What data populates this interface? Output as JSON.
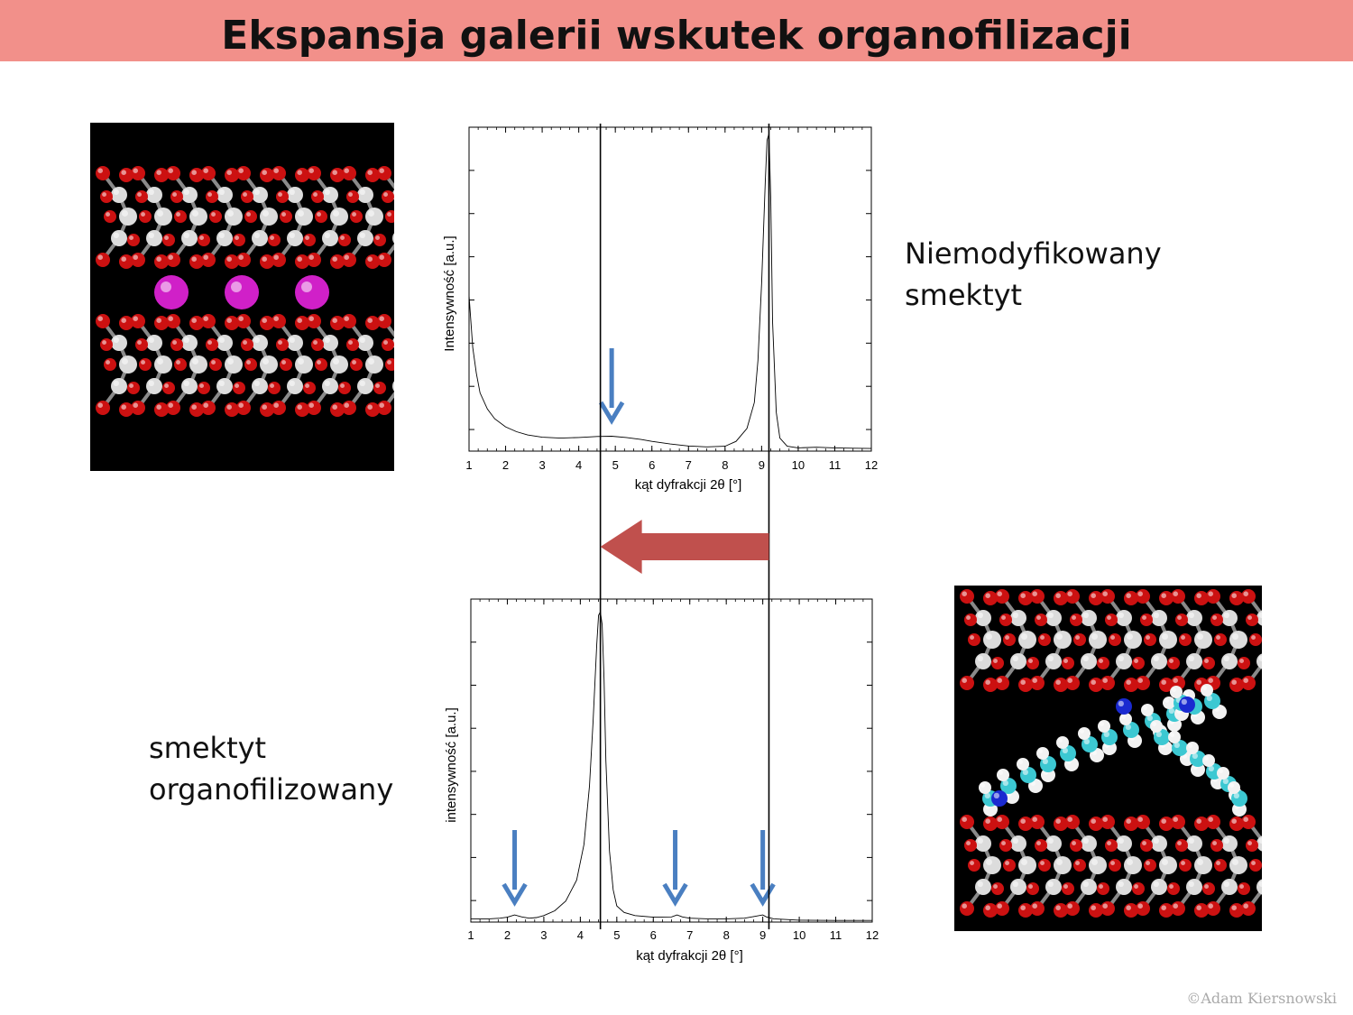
{
  "title": "Ekspansja galerii wskutek organofilizacji",
  "captions": {
    "top": [
      "Niemodyfikowany",
      "smektyt"
    ],
    "bottom": [
      "smektyt",
      "organofilizowany"
    ]
  },
  "copyright": "©Adam Kiersnowski",
  "colors": {
    "title_bar": "#f2908a",
    "marker_arrows": "#4a7fc1",
    "shift_arrow": "#c0504d",
    "oxygen": "#cc1111",
    "silicon": "#dcdcdc",
    "cation": "#d020c8",
    "carbon": "#3cc8d2",
    "nitrogen": "#1a2ad0"
  },
  "molecule_images": [
    {
      "name": "unmodified-smectite",
      "atoms": [
        "oxygen",
        "silicon",
        "cation"
      ]
    },
    {
      "name": "organophilized-smectite",
      "atoms": [
        "oxygen",
        "silicon",
        "carbon",
        "hydrogen",
        "nitrogen"
      ]
    }
  ],
  "chart_data": [
    {
      "type": "line",
      "xlabel": "kąt dyfrakcji 2θ [°]",
      "ylabel": "Intensywność [a.u.]",
      "xlim": [
        1,
        12
      ],
      "ylim": [
        0,
        1
      ],
      "x_ticks": [
        "1",
        "2",
        "3",
        "4",
        "5",
        "6",
        "7",
        "8",
        "9",
        "10",
        "11",
        "12"
      ],
      "peak_marker_x": 9.2,
      "arrow_markers_x": [
        4.9
      ],
      "series": [
        {
          "x": [
            1.0,
            1.1,
            1.2,
            1.3,
            1.5,
            1.7,
            2.0,
            2.3,
            2.6,
            3.0,
            3.5,
            4.0,
            4.5,
            4.9,
            5.3,
            5.7,
            6.0,
            6.5,
            7.0,
            7.5,
            8.0,
            8.3,
            8.6,
            8.8,
            8.9,
            9.0,
            9.1,
            9.15,
            9.2,
            9.25,
            9.3,
            9.4,
            9.5,
            9.7,
            10.0,
            10.5,
            11.0,
            11.5,
            12.0
          ],
          "y": [
            0.48,
            0.32,
            0.24,
            0.18,
            0.13,
            0.1,
            0.075,
            0.06,
            0.05,
            0.043,
            0.04,
            0.042,
            0.045,
            0.046,
            0.042,
            0.036,
            0.03,
            0.022,
            0.016,
            0.013,
            0.015,
            0.03,
            0.07,
            0.15,
            0.28,
            0.52,
            0.83,
            0.96,
            0.98,
            0.78,
            0.4,
            0.12,
            0.04,
            0.015,
            0.01,
            0.012,
            0.01,
            0.009,
            0.008
          ]
        }
      ]
    },
    {
      "type": "line",
      "xlabel": "kąt dyfrakcji 2θ [°]",
      "ylabel": "intensywność [a.u.]",
      "xlim": [
        1,
        12
      ],
      "ylim": [
        0,
        1
      ],
      "x_ticks": [
        "1",
        "2",
        "3",
        "4",
        "5",
        "6",
        "7",
        "8",
        "9",
        "10",
        "11",
        "12"
      ],
      "peak_marker_x": 4.55,
      "arrow_markers_x": [
        2.2,
        6.6,
        9.0
      ],
      "series": [
        {
          "x": [
            1.0,
            1.5,
            1.8,
            2.0,
            2.2,
            2.4,
            2.6,
            2.8,
            3.0,
            3.3,
            3.6,
            3.9,
            4.1,
            4.25,
            4.35,
            4.45,
            4.5,
            4.55,
            4.6,
            4.65,
            4.7,
            4.8,
            4.9,
            5.0,
            5.2,
            5.5,
            6.0,
            6.5,
            6.65,
            6.8,
            7.0,
            7.5,
            8.0,
            8.5,
            8.8,
            9.0,
            9.1,
            9.3,
            9.6,
            10.0,
            11.0,
            12.0
          ],
          "y": [
            0.01,
            0.01,
            0.012,
            0.015,
            0.022,
            0.016,
            0.012,
            0.014,
            0.02,
            0.035,
            0.065,
            0.13,
            0.24,
            0.42,
            0.62,
            0.86,
            0.95,
            0.96,
            0.92,
            0.75,
            0.5,
            0.22,
            0.1,
            0.05,
            0.03,
            0.02,
            0.015,
            0.016,
            0.022,
            0.016,
            0.012,
            0.01,
            0.01,
            0.012,
            0.018,
            0.022,
            0.016,
            0.01,
            0.008,
            0.006,
            0.005,
            0.005
          ]
        }
      ]
    }
  ]
}
